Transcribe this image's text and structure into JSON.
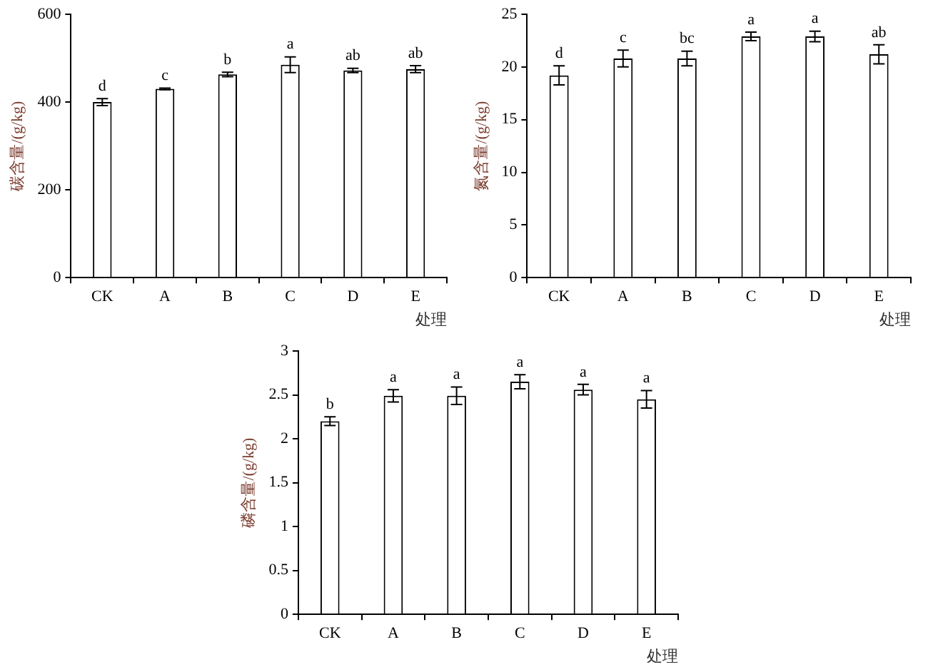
{
  "chart_data": [
    {
      "type": "bar",
      "xlabel": "处理",
      "ylabel": "碳含量/(g/kg)",
      "categories": [
        "CK",
        "A",
        "B",
        "C",
        "D",
        "E"
      ],
      "values": [
        400,
        430,
        463,
        485,
        472,
        475
      ],
      "errors": [
        8,
        2,
        5,
        18,
        5,
        8
      ],
      "color": "#ffffff",
      "ylim": [
        0,
        600
      ],
      "yticks": [
        0,
        200,
        400,
        600
      ],
      "grid": false,
      "legend": false,
      "annotations": [
        {
          "text": "d",
          "x": "CK",
          "y": 408
        },
        {
          "text": "c",
          "x": "A",
          "y": 432
        },
        {
          "text": "b",
          "x": "B",
          "y": 468
        },
        {
          "text": "a",
          "x": "C",
          "y": 503
        },
        {
          "text": "ab",
          "x": "D",
          "y": 477
        },
        {
          "text": "ab",
          "x": "E",
          "y": 483
        }
      ]
    },
    {
      "type": "bar",
      "xlabel": "处理",
      "ylabel": "氮含量/(g/kg)",
      "categories": [
        "CK",
        "A",
        "B",
        "C",
        "D",
        "E"
      ],
      "values": [
        19.2,
        20.8,
        20.8,
        22.9,
        22.9,
        21.2
      ],
      "errors": [
        0.9,
        0.8,
        0.7,
        0.4,
        0.5,
        0.9
      ],
      "color": "#ffffff",
      "ylim": [
        0,
        25
      ],
      "yticks": [
        0,
        5,
        10,
        15,
        20,
        25
      ],
      "grid": false,
      "legend": false,
      "annotations": [
        {
          "text": "d",
          "x": "CK",
          "y": 20.1
        },
        {
          "text": "c",
          "x": "A",
          "y": 21.6
        },
        {
          "text": "bc",
          "x": "B",
          "y": 21.5
        },
        {
          "text": "a",
          "x": "C",
          "y": 23.3
        },
        {
          "text": "a",
          "x": "D",
          "y": 23.4
        },
        {
          "text": "ab",
          "x": "E",
          "y": 22.1
        }
      ]
    },
    {
      "type": "bar",
      "xlabel": "处理",
      "ylabel": "磷含量/(g/kg)",
      "categories": [
        "CK",
        "A",
        "B",
        "C",
        "D",
        "E"
      ],
      "values": [
        2.2,
        2.49,
        2.49,
        2.65,
        2.56,
        2.45
      ],
      "errors": [
        0.05,
        0.07,
        0.1,
        0.08,
        0.06,
        0.1
      ],
      "color": "#ffffff",
      "ylim": [
        0,
        3
      ],
      "yticks": [
        0,
        0.5,
        1,
        1.5,
        2,
        2.5,
        3
      ],
      "grid": false,
      "legend": false,
      "annotations": [
        {
          "text": "b",
          "x": "CK",
          "y": 2.25
        },
        {
          "text": "a",
          "x": "A",
          "y": 2.56
        },
        {
          "text": "a",
          "x": "B",
          "y": 2.59
        },
        {
          "text": "a",
          "x": "C",
          "y": 2.73
        },
        {
          "text": "a",
          "x": "D",
          "y": 2.62
        },
        {
          "text": "a",
          "x": "E",
          "y": 2.55
        }
      ]
    }
  ]
}
